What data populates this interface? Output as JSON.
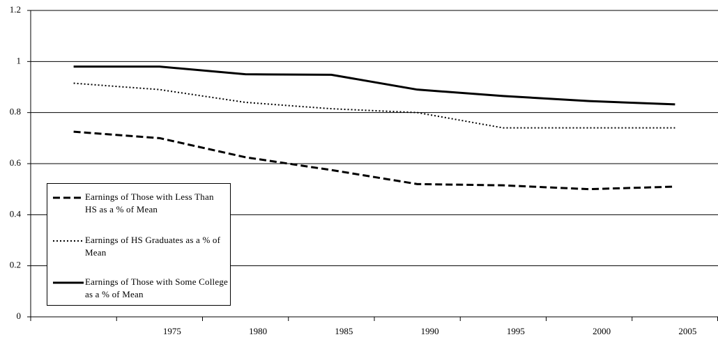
{
  "chart_data": {
    "type": "line",
    "categories": [
      null,
      "1975",
      "1980",
      "1985",
      "1990",
      "1995",
      "2000",
      "2005"
    ],
    "series": [
      {
        "name": "Earnings of Those with Less Than HS as a % of Mean",
        "color": "#000000",
        "style": "dashed",
        "values": [
          0.725,
          0.7,
          0.625,
          0.575,
          0.52,
          0.515,
          0.5,
          0.51
        ]
      },
      {
        "name": "Earnings of HS Graduates as a % of Mean",
        "color": "#000000",
        "style": "dotted",
        "values": [
          0.915,
          0.89,
          0.84,
          0.815,
          0.8,
          0.74,
          0.74,
          0.74
        ]
      },
      {
        "name": "Earnings of Those with Some College as a % of Mean",
        "color": "#000000",
        "style": "solid",
        "values": [
          0.98,
          0.98,
          0.95,
          0.948,
          0.89,
          0.865,
          0.845,
          0.832
        ]
      }
    ],
    "ylim": [
      0,
      1.2
    ],
    "yticks": [
      0,
      0.2,
      0.4,
      0.6,
      0.8,
      1,
      1.2
    ],
    "grid": true,
    "legend": "lower left"
  }
}
